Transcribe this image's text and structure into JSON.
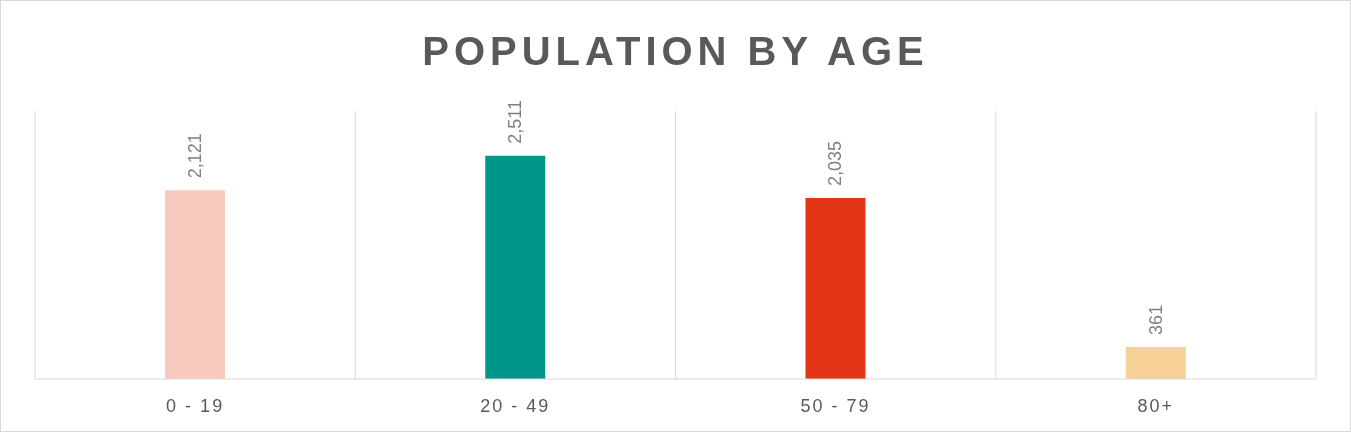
{
  "chart_data": {
    "type": "bar",
    "title": "POPULATION BY AGE",
    "categories": [
      "0 - 19",
      "20 - 49",
      "50 - 79",
      "80+"
    ],
    "values": [
      2121,
      2511,
      2035,
      361
    ],
    "colors": [
      "#f8c9bd",
      "#00968a",
      "#e33617",
      "#f5d197"
    ],
    "value_labels": [
      "2,121",
      "2,511",
      "2,035",
      "361"
    ],
    "grid": "x",
    "legend": false
  }
}
